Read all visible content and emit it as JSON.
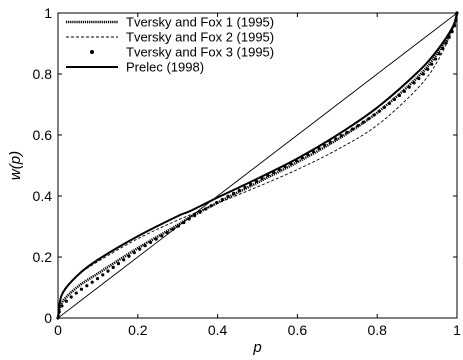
{
  "chart_data": {
    "type": "line",
    "xlabel": "p",
    "ylabel": "w(p)",
    "xlim": [
      0,
      1
    ],
    "ylim": [
      0,
      1
    ],
    "x_ticks": [
      "0",
      "0.2",
      "0.4",
      "0.6",
      "0.8",
      "1"
    ],
    "y_ticks": [
      "0",
      "0.2",
      "0.4",
      "0.6",
      "0.8",
      "1"
    ],
    "x_tick_values": [
      0,
      0.2,
      0.4,
      0.6,
      0.8,
      1
    ],
    "y_tick_values": [
      0,
      0.2,
      0.4,
      0.6,
      0.8,
      1
    ],
    "grid": false,
    "legend_position": "top-left",
    "x": [
      0,
      0.01,
      0.05,
      0.1,
      0.2,
      0.3,
      0.33,
      0.4,
      0.5,
      0.6,
      0.7,
      0.8,
      0.9,
      0.95,
      0.99,
      1
    ],
    "series": [
      {
        "name": "Tversky and Fox 1 (1995)",
        "style": "dense-dotted",
        "color": "#000000",
        "values": [
          0,
          0.051,
          0.103,
          0.146,
          0.229,
          0.305,
          0.33,
          0.378,
          0.444,
          0.511,
          0.585,
          0.673,
          0.788,
          0.866,
          0.954,
          1
        ]
      },
      {
        "name": "Tversky and Fox 2 (1995)",
        "style": "dashed",
        "color": "#000000",
        "values": [
          0,
          0.081,
          0.14,
          0.185,
          0.26,
          0.321,
          0.337,
          0.376,
          0.43,
          0.487,
          0.552,
          0.632,
          0.751,
          0.839,
          0.95,
          1
        ]
      },
      {
        "name": "Tversky and Fox 3 (1995)",
        "style": "points",
        "color": "#000000",
        "values": [
          0,
          0.04,
          0.086,
          0.13,
          0.222,
          0.3,
          0.326,
          0.38,
          0.45,
          0.518,
          0.59,
          0.673,
          0.78,
          0.856,
          0.945,
          1
        ]
      },
      {
        "name": "Prelec (1998)",
        "style": "solid-thick",
        "color": "#000000",
        "values": [
          0,
          0.077,
          0.141,
          0.191,
          0.268,
          0.334,
          0.35,
          0.395,
          0.457,
          0.523,
          0.6,
          0.69,
          0.804,
          0.877,
          0.956,
          1
        ]
      },
      {
        "name": "",
        "style": "diagonal",
        "color": "#000000",
        "values": [
          0,
          0.01,
          0.05,
          0.1,
          0.2,
          0.3,
          0.33,
          0.4,
          0.5,
          0.6,
          0.7,
          0.8,
          0.9,
          0.95,
          0.99,
          1
        ]
      }
    ]
  }
}
